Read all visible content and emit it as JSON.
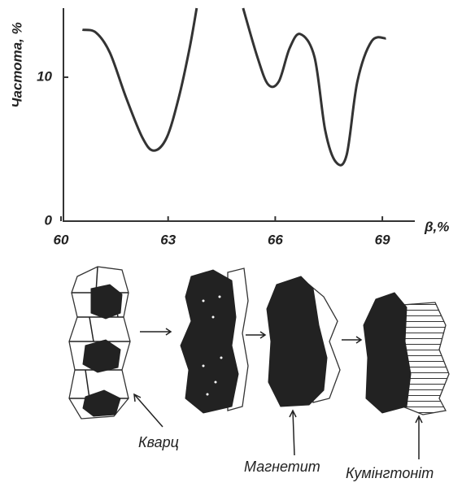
{
  "chart_data": {
    "type": "line",
    "ylabel": "Частота, %",
    "xlabel": "β,%",
    "x": [
      60.6,
      60.98,
      61.37,
      61.82,
      62.28,
      62.6,
      62.96,
      63.3,
      63.6,
      63.8,
      64.5,
      65.1,
      65.5,
      65.8,
      66.1,
      66.4,
      66.7,
      67.1,
      67.4,
      67.7,
      68.0,
      68.3,
      68.7,
      69.1
    ],
    "values": [
      13.3,
      13.1,
      11.7,
      8.6,
      5.8,
      4.9,
      5.8,
      8.6,
      12.0,
      14.8,
      null,
      14.8,
      11.4,
      9.5,
      9.7,
      12.0,
      13.0,
      11.4,
      6.3,
      4.1,
      4.6,
      9.7,
      12.5,
      12.7
    ],
    "color": "#333333",
    "xlim": [
      60,
      70
    ],
    "ylim": [
      0,
      14.8
    ],
    "xticks": [
      60,
      63,
      66,
      69
    ],
    "yticks": [
      0,
      10
    ],
    "grid": false
  },
  "diagram": {
    "labels": [
      "Кварц",
      "Магнетит",
      "Кумінгтоніт"
    ]
  }
}
